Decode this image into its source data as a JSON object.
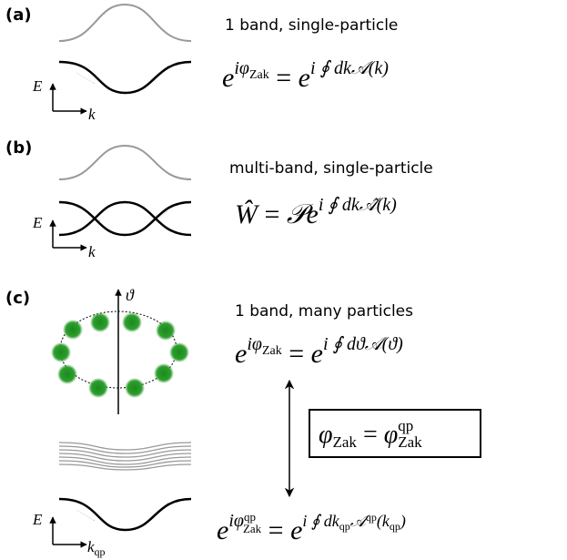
{
  "panels": [
    {
      "label": "(a)",
      "caption": "1 band, single-particle",
      "axis_y": "E",
      "axis_x": "k",
      "equation": {
        "lhs": "e",
        "lhs_exp": "iφ",
        "lhs_exp_sub": "Zak",
        "eq": " = ",
        "rhs": "e",
        "rhs_exp": "i ∮ dk𝒜(k)"
      }
    },
    {
      "label": "(b)",
      "caption": "multi-band, single-particle",
      "axis_y": "E",
      "axis_x": "k",
      "equation": {
        "lhs": "Ŵ",
        "eq": " = ",
        "rhs": "𝒫e",
        "rhs_exp": "i ∮ dk𝒜̂(k)"
      }
    },
    {
      "label": "(c)",
      "caption": "1 band, many particles",
      "axis_theta": "ϑ",
      "axis_y": "E",
      "axis_x": "k",
      "axis_x_sub": "qp",
      "equation_top": {
        "lhs": "e",
        "lhs_exp": "iφ",
        "lhs_exp_sub": "Zak",
        "eq": " = ",
        "rhs": "e",
        "rhs_exp": "i ∮ dϑ𝒜(ϑ)"
      },
      "box": {
        "lhs": "φ",
        "lhs_sub": "Zak",
        "eq": " = ",
        "rhs": "φ",
        "rhs_sup": "qp",
        "rhs_sub": "Zak"
      },
      "equation_bottom": {
        "lhs": "e",
        "lhs_exp": "iφ",
        "lhs_exp_sup": "qp",
        "lhs_exp_sub": "Zak",
        "eq": " = ",
        "rhs": "e",
        "rhs_exp_a": "i ∮ dk",
        "rhs_exp_a_sub": "qp",
        "rhs_exp_b": "𝒜",
        "rhs_exp_b_sup": "qp",
        "rhs_exp_c": "(k",
        "rhs_exp_c_sub": "qp",
        "rhs_exp_d": ")"
      }
    }
  ]
}
